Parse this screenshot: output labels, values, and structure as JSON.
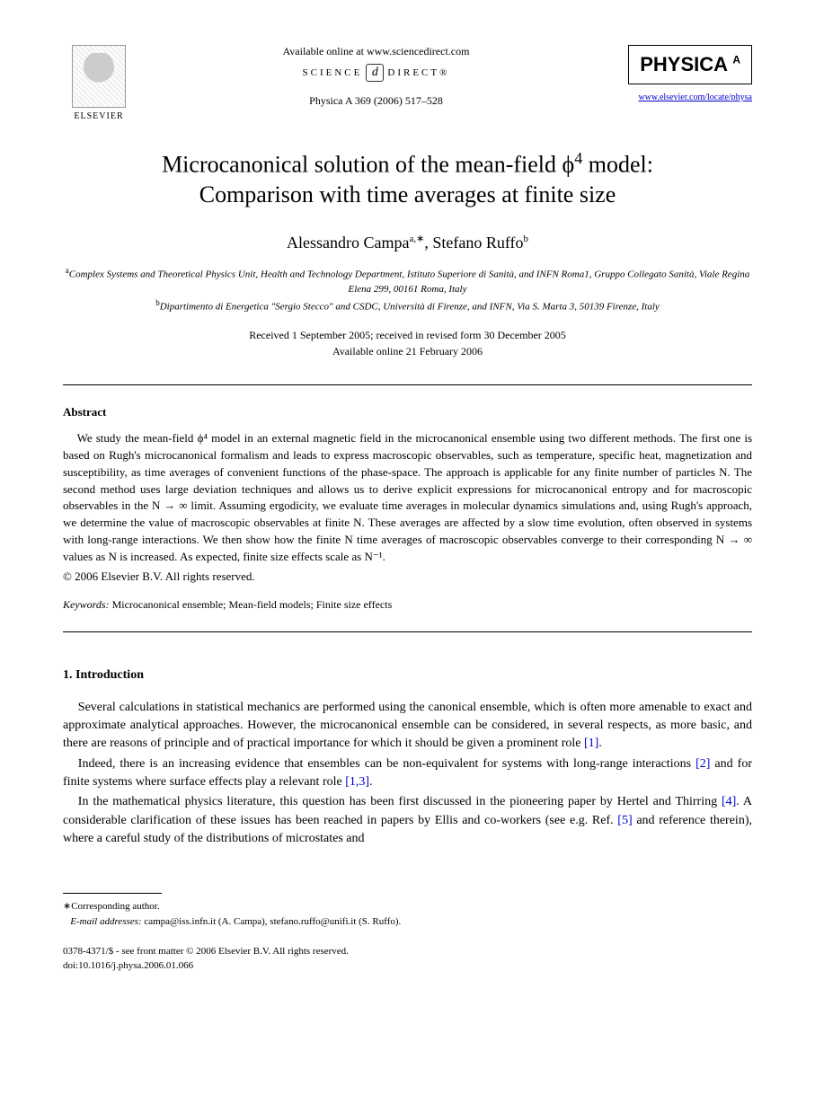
{
  "header": {
    "elsevier_label": "ELSEVIER",
    "available_text": "Available online at www.sciencedirect.com",
    "science_label_left": "SCIENCE",
    "science_label_right": "DIRECT®",
    "sd_glyph": "d",
    "citation": "Physica A 369 (2006) 517–528",
    "physica_label": "PHYSICA",
    "physica_letter": "A",
    "journal_url": "www.elsevier.com/locate/physa"
  },
  "title_line1": "Microcanonical solution of the mean-field ϕ",
  "title_sup": "4",
  "title_line1_tail": " model:",
  "title_line2": "Comparison with time averages at finite size",
  "authors": {
    "a1_name": "Alessandro Campa",
    "a1_sup": "a,∗",
    "sep": ", ",
    "a2_name": "Stefano Ruffo",
    "a2_sup": "b"
  },
  "affiliations": {
    "a_sup": "a",
    "a_text": "Complex Systems and Theoretical Physics Unit, Health and Technology Department, Istituto Superiore di Sanità, and INFN Roma1, Gruppo Collegato Sanità, Viale Regina Elena 299, 00161 Roma, Italy",
    "b_sup": "b",
    "b_text": "Dipartimento di Energetica \"Sergio Stecco\" and CSDC, Università di Firenze, and INFN, Via S. Marta 3, 50139 Firenze, Italy"
  },
  "dates": {
    "received": "Received 1 September 2005; received in revised form 30 December 2005",
    "online": "Available online 21 February 2006"
  },
  "abstract": {
    "heading": "Abstract",
    "body": "We study the mean-field ϕ⁴ model in an external magnetic field in the microcanonical ensemble using two different methods. The first one is based on Rugh's microcanonical formalism and leads to express macroscopic observables, such as temperature, specific heat, magnetization and susceptibility, as time averages of convenient functions of the phase-space. The approach is applicable for any finite number of particles N. The second method uses large deviation techniques and allows us to derive explicit expressions for microcanonical entropy and for macroscopic observables in the N → ∞ limit. Assuming ergodicity, we evaluate time averages in molecular dynamics simulations and, using Rugh's approach, we determine the value of macroscopic observables at finite N. These averages are affected by a slow time evolution, often observed in systems with long-range interactions. We then show how the finite N time averages of macroscopic observables converge to their corresponding N → ∞ values as N is increased. As expected, finite size effects scale as N⁻¹.",
    "copyright": "© 2006 Elsevier B.V. All rights reserved."
  },
  "keywords": {
    "label": "Keywords:",
    "text": " Microcanonical ensemble; Mean-field models; Finite size effects"
  },
  "section1": {
    "heading": "1. Introduction",
    "p1_a": "Several calculations in statistical mechanics are performed using the canonical ensemble, which is often more amenable to exact and approximate analytical approaches. However, the microcanonical ensemble can be considered, in several respects, as more basic, and there are reasons of principle and of practical importance for which it should be given a prominent role ",
    "p1_ref": "[1]",
    "p1_b": ".",
    "p2_a": "Indeed, there is an increasing evidence that ensembles can be non-equivalent for systems with long-range interactions ",
    "p2_ref1": "[2]",
    "p2_b": " and for finite systems where surface effects play a relevant role ",
    "p2_ref2": "[1,3]",
    "p2_c": ".",
    "p3_a": "In the mathematical physics literature, this question has been first discussed in the pioneering paper by Hertel and Thirring ",
    "p3_ref1": "[4]",
    "p3_b": ". A considerable clarification of these issues has been reached in papers by Ellis and co-workers (see e.g. Ref. ",
    "p3_ref2": "[5]",
    "p3_c": " and reference therein), where a careful study of the distributions of microstates and"
  },
  "footnotes": {
    "corr": "Corresponding author.",
    "email_label": "E-mail addresses:",
    "emails": " campa@iss.infn.it (A. Campa), stefano.ruffo@unifi.it (S. Ruffo)."
  },
  "bottom": {
    "line1": "0378-4371/$ - see front matter © 2006 Elsevier B.V. All rights reserved.",
    "line2": "doi:10.1016/j.physa.2006.01.066"
  }
}
